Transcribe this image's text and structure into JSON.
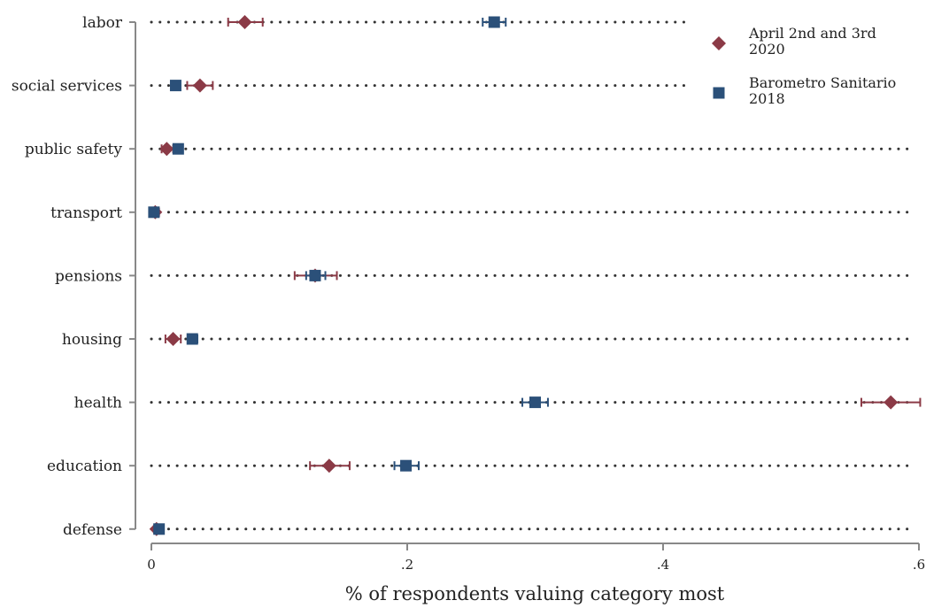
{
  "chart_data": {
    "type": "scatter",
    "orientation": "horizontal dot plot with confidence intervals",
    "xlabel": "% of respondents valuing category most",
    "xlim": [
      0,
      0.6
    ],
    "xticks": [
      0,
      0.2,
      0.4,
      0.6
    ],
    "xtick_labels": [
      "0",
      ".2",
      ".4",
      ".6"
    ],
    "categories": [
      "labor",
      "social services",
      "public safety",
      "transport",
      "pensions",
      "housing",
      "health",
      "education",
      "defense"
    ],
    "grid": "dotted horizontal line per category",
    "legend_position": "top-right",
    "series": [
      {
        "name": "April 2nd and 3rd 2020",
        "legend_lines": [
          "April 2nd and 3rd",
          "2020"
        ],
        "marker": "diamond",
        "color": "#8b3a46",
        "values": [
          0.073,
          0.038,
          0.012,
          0.003,
          0.128,
          0.017,
          0.578,
          0.139,
          0.004
        ],
        "ci_low": [
          0.06,
          0.028,
          0.008,
          0.001,
          0.112,
          0.011,
          0.555,
          0.124,
          0.002
        ],
        "ci_high": [
          0.087,
          0.048,
          0.017,
          0.006,
          0.145,
          0.023,
          0.601,
          0.155,
          0.007
        ]
      },
      {
        "name": "Barometro Sanitario 2018",
        "legend_lines": [
          "Barometro Sanitario",
          "2018"
        ],
        "marker": "square",
        "color": "#2b5079",
        "values": [
          0.268,
          0.019,
          0.021,
          0.002,
          0.128,
          0.032,
          0.3,
          0.199,
          0.006
        ],
        "ci_low": [
          0.259,
          0.016,
          0.018,
          0.001,
          0.121,
          0.029,
          0.29,
          0.19,
          0.004
        ],
        "ci_high": [
          0.277,
          0.022,
          0.024,
          0.004,
          0.136,
          0.036,
          0.31,
          0.209,
          0.008
        ]
      }
    ]
  }
}
